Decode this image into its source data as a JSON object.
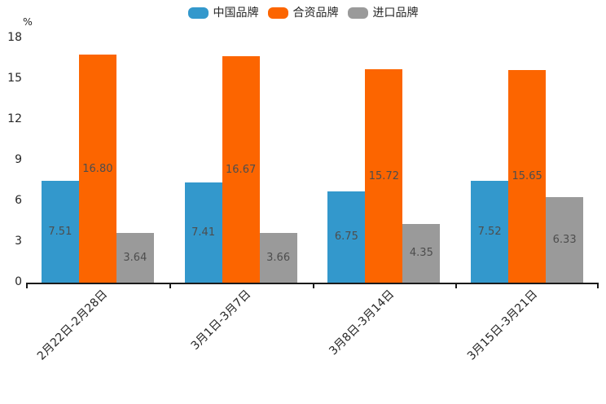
{
  "chart_data": {
    "type": "bar",
    "unit_label": "%",
    "categories": [
      "2月22日-2月28日",
      "3月1日-3月7日",
      "3月8日-3月14日",
      "3月15日-3月21日"
    ],
    "series": [
      {
        "name": "中国品牌",
        "color": "#3398CC",
        "values": [
          7.51,
          7.41,
          6.75,
          7.52
        ]
      },
      {
        "name": "合资品牌",
        "color": "#FC6500",
        "values": [
          16.8,
          16.67,
          15.72,
          15.65
        ]
      },
      {
        "name": "进口品牌",
        "color": "#9A9A9A",
        "values": [
          3.64,
          3.66,
          4.35,
          6.33
        ]
      }
    ],
    "ylim": [
      0,
      18
    ],
    "yticks": [
      0,
      3,
      6,
      9,
      12,
      15,
      18
    ],
    "legend_position": "top",
    "grid": false,
    "value_decimals": 2,
    "colors": {
      "axis": "#1A1A1A",
      "value_label": "#4D4D4D",
      "tick_label": "#262626"
    }
  }
}
